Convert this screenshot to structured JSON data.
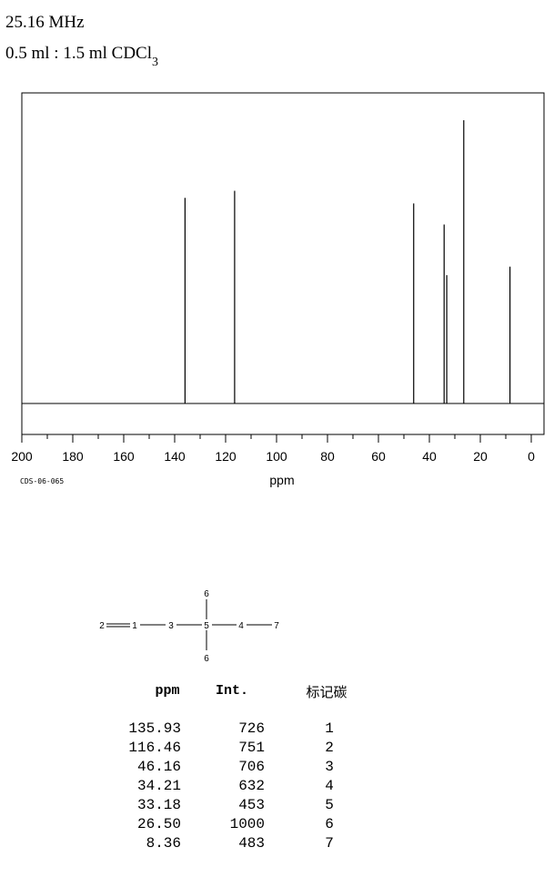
{
  "header": {
    "frequency": "25.16 MHz",
    "solvent_prefix": "0.5 ml : 1.5 ml CDCl",
    "solvent_subscript": "3"
  },
  "chart_data": {
    "type": "line",
    "title": "",
    "xlabel": "ppm",
    "ylabel": "",
    "xlim": [
      200,
      -5
    ],
    "x_reversed": true,
    "ylim": [
      0,
      1000
    ],
    "grid": false,
    "x_ticks": [
      200,
      180,
      160,
      140,
      120,
      100,
      80,
      60,
      40,
      20,
      0
    ],
    "peaks": [
      {
        "x": 135.93,
        "y": 726
      },
      {
        "x": 116.46,
        "y": 751
      },
      {
        "x": 46.16,
        "y": 706
      },
      {
        "x": 34.21,
        "y": 632
      },
      {
        "x": 33.18,
        "y": 453
      },
      {
        "x": 26.5,
        "y": 1000
      },
      {
        "x": 8.36,
        "y": 483
      }
    ]
  },
  "spectrum_code": "CDS-06-065",
  "molecule": {
    "atoms": [
      "2",
      "1",
      "3",
      "5",
      "4",
      "7",
      "6",
      "6"
    ]
  },
  "table": {
    "headers": {
      "ppm": "ppm",
      "int": "Int.",
      "carbon": "标记碳"
    },
    "rows": [
      {
        "ppm": "135.93",
        "int": "726",
        "carbon": "1"
      },
      {
        "ppm": "116.46",
        "int": "751",
        "carbon": "2"
      },
      {
        "ppm": "46.16",
        "int": "706",
        "carbon": "3"
      },
      {
        "ppm": "34.21",
        "int": "632",
        "carbon": "4"
      },
      {
        "ppm": "33.18",
        "int": "453",
        "carbon": "5"
      },
      {
        "ppm": "26.50",
        "int": "1000",
        "carbon": "6"
      },
      {
        "ppm": "8.36",
        "int": "483",
        "carbon": "7"
      }
    ]
  }
}
